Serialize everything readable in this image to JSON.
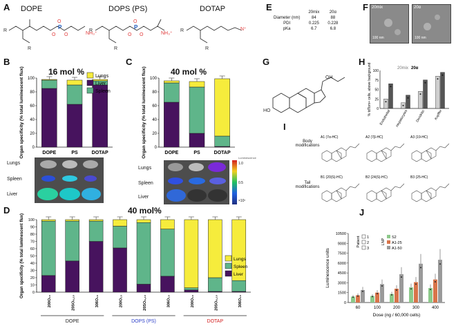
{
  "panel_labels": {
    "A": "A",
    "B": "B",
    "C": "C",
    "D": "D",
    "E": "E",
    "F": "F",
    "G": "G",
    "H": "H",
    "I": "I",
    "J": "J"
  },
  "panelA": {
    "names": [
      "DOPE",
      "DOPS (PS)",
      "DOTAP"
    ]
  },
  "panelE": {
    "headers": [
      "",
      "20mix",
      "20α"
    ],
    "rows": [
      [
        "Diameter (nm)",
        "84",
        "88"
      ],
      [
        "PDI",
        "0.225",
        "0.228"
      ],
      [
        "pKa",
        "6.7",
        "6.8"
      ]
    ]
  },
  "panelF": {
    "labels": [
      "20mix",
      "20α"
    ],
    "scale": "100 nm"
  },
  "panelG": {
    "oh_label": "OH",
    "ho_label": "HO"
  },
  "panelB": {
    "title": "16 mol %"
  },
  "panelC": {
    "title": "40 mol %"
  },
  "panelD": {
    "title": "40 mol%",
    "groups": [
      "DOPE",
      "DOPS (PS)",
      "DOTAP"
    ]
  },
  "organ_images": {
    "rows": [
      "Lungs",
      "Spleen",
      "Liver"
    ],
    "scale_title": "Luminescence",
    "scale_ticks": [
      "1.0",
      "0.5",
      "×10⁷"
    ]
  },
  "panelI": {
    "body_label": "Body modifications",
    "tail_label": "Tail modifications",
    "compounds": [
      "A1 (7α-HC)",
      "A2 (7β-HC)",
      "A3 (19-HC)",
      "B1 (20(S)-HC)",
      "B2 (24(S)-HC)",
      "B3 (25-HC)"
    ]
  },
  "colors": {
    "lungs": "#f6ec3c",
    "spleen": "#5fb58a",
    "liver": "#47135e",
    "j_s2": "#8cc98a",
    "j_a125": "#d8744a",
    "j_a150": "#9a9a9a"
  },
  "chart_data": [
    {
      "id": "B",
      "type": "bar",
      "stacked": true,
      "title": "16 mol %",
      "ylabel": "Organ specificity (% total luminescent flux)",
      "ylim": [
        0,
        100
      ],
      "yticks": [
        0,
        20,
        40,
        60,
        80,
        100
      ],
      "categories": [
        "DOPE",
        "PS",
        "DOTAP"
      ],
      "series": [
        {
          "name": "Liver",
          "color": "#47135e",
          "values": [
            85,
            62,
            90
          ]
        },
        {
          "name": "Spleen",
          "color": "#5fb58a",
          "values": [
            12,
            28,
            6
          ]
        },
        {
          "name": "Lungs",
          "color": "#f6ec3c",
          "values": [
            1,
            7,
            2
          ]
        }
      ],
      "legend": [
        "Lungs",
        "Liver",
        "Spleen"
      ]
    },
    {
      "id": "C",
      "type": "bar",
      "stacked": true,
      "title": "40 mol %",
      "ylabel": "Organ specificity (% total luminescent flux)",
      "ylim": [
        0,
        100
      ],
      "yticks": [
        0,
        20,
        40,
        60,
        80,
        100
      ],
      "categories": [
        "DOPE",
        "PS",
        "DOTAP"
      ],
      "series": [
        {
          "name": "Liver",
          "color": "#47135e",
          "values": [
            65,
            20,
            1
          ]
        },
        {
          "name": "Spleen",
          "color": "#5fb58a",
          "values": [
            28,
            67,
            15
          ]
        },
        {
          "name": "Lungs",
          "color": "#f6ec3c",
          "values": [
            3,
            8,
            83
          ]
        }
      ]
    },
    {
      "id": "D",
      "type": "bar",
      "stacked": true,
      "title": "40 mol%",
      "ylabel": "Organ specificity (% total luminescent flux)",
      "ylim": [
        0,
        100
      ],
      "yticks": [
        0,
        10,
        20,
        30,
        40,
        50,
        60,
        70,
        80,
        90,
        100
      ],
      "categories": [
        "200O₁₀",
        "20SO₆,₁₀",
        "306O₁₀",
        "200O₁₀",
        "20SO₆,₁₀",
        "306O₁₀",
        "200O₁₀",
        "20SO₆,₁₀",
        "306O₁₀"
      ],
      "series": [
        {
          "name": "Liver",
          "color": "#47135e",
          "values": [
            23,
            43,
            70,
            61,
            11,
            22,
            3,
            1,
            1
          ]
        },
        {
          "name": "Spleen",
          "color": "#5fb58a",
          "values": [
            75,
            55,
            28,
            30,
            85,
            65,
            3,
            19,
            15
          ]
        },
        {
          "name": "Lungs",
          "color": "#f6ec3c",
          "values": [
            2,
            2,
            2,
            9,
            4,
            13,
            94,
            80,
            84
          ]
        }
      ],
      "legend": [
        "Lungs",
        "Spleen",
        "Liver"
      ]
    },
    {
      "id": "H",
      "type": "bar",
      "title": "20mix 20α",
      "ylabel": "% tdTom+ cells, above background",
      "ylim": [
        0,
        100
      ],
      "yticks": [
        0,
        25,
        50,
        75,
        100
      ],
      "categories": [
        "Endothelial",
        "Hepatocytes",
        "Dendritic",
        "Kupffer"
      ],
      "series": [
        {
          "name": "20mix",
          "color": "#cfcfcf",
          "values": [
            25,
            15,
            45,
            85
          ]
        },
        {
          "name": "20α",
          "color": "#555555",
          "values": [
            65,
            35,
            75,
            95
          ]
        }
      ]
    },
    {
      "id": "J",
      "type": "bar",
      "xlabel": "Dose (ng / 60,000 cells)",
      "ylabel": "Luminescence units",
      "ylim": [
        0,
        10500
      ],
      "yticks": [
        0,
        1500,
        3000,
        4500,
        6000,
        7500,
        9000,
        10500
      ],
      "categories": [
        "60",
        "100",
        "200",
        "300",
        "400"
      ],
      "series": [
        {
          "name": "S2",
          "color": "#8cc98a",
          "values": [
            900,
            1000,
            1300,
            2300,
            2200
          ]
        },
        {
          "name": "A1-25",
          "color": "#d8744a",
          "values": [
            1100,
            1500,
            2100,
            3100,
            3500
          ]
        },
        {
          "name": "A1-50",
          "color": "#9a9a9a",
          "values": [
            1900,
            2800,
            4300,
            5900,
            6500
          ]
        }
      ],
      "patient_legend": [
        "1",
        "2",
        "3"
      ],
      "patient_title": "Patient",
      "lnp_title": "LNP"
    }
  ]
}
